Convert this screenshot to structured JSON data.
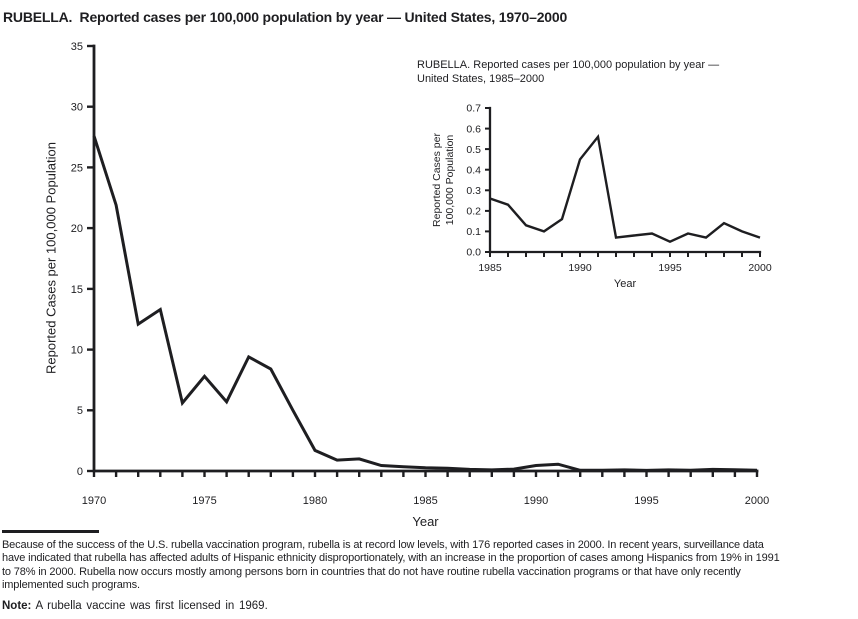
{
  "page_title": "RUBELLA.  Reported cases per 100,000 population by year — United States, 1970–2000",
  "colors": {
    "ink": "#1e1e21",
    "background": "#ffffff"
  },
  "chart_data": [
    {
      "type": "line",
      "title": "RUBELLA.  Reported cases per 100,000 population by year — United States, 1970–2000",
      "xlabel": "Year",
      "ylabel": "Reported Cases per 100,000 Population",
      "ylabel_lines": [
        "Reported Cases per 100,000 Population"
      ],
      "x": [
        1970,
        1971,
        1972,
        1973,
        1974,
        1975,
        1976,
        1977,
        1978,
        1979,
        1980,
        1981,
        1982,
        1983,
        1984,
        1985,
        1986,
        1987,
        1988,
        1989,
        1990,
        1991,
        1992,
        1993,
        1994,
        1995,
        1996,
        1997,
        1998,
        1999,
        2000
      ],
      "values": [
        27.6,
        21.9,
        12.1,
        13.3,
        5.6,
        7.8,
        5.7,
        9.4,
        8.4,
        5.0,
        1.7,
        0.9,
        1.0,
        0.45,
        0.35,
        0.26,
        0.23,
        0.13,
        0.09,
        0.16,
        0.45,
        0.56,
        0.06,
        0.07,
        0.09,
        0.05,
        0.09,
        0.07,
        0.13,
        0.1,
        0.06
      ],
      "xlim": [
        1970,
        2000
      ],
      "ylim": [
        0,
        35
      ],
      "xtick_values": [
        1970,
        1975,
        1980,
        1985,
        1990,
        1995,
        2000
      ],
      "xtick_labels": [
        "1970",
        "1975",
        "1980",
        "1985",
        "1990",
        "1995",
        "2000"
      ],
      "ytick_values": [
        0,
        5,
        10,
        15,
        20,
        25,
        30,
        35
      ],
      "ytick_labels": [
        "0",
        "5",
        "10",
        "15",
        "20",
        "25",
        "30",
        "35"
      ],
      "grid": false,
      "legend": "none",
      "line_color": "#1e1e21"
    },
    {
      "type": "line",
      "title": "RUBELLA. Reported cases per 100,000 population by year — United States, 1985–2000",
      "title_lines": [
        "RUBELLA. Reported cases per 100,000 population by year —",
        "United States, 1985–2000"
      ],
      "xlabel": "Year",
      "ylabel": "Reported Cases per 100,000 Population",
      "ylabel_lines": [
        "Reported Cases per",
        "100,000 Population"
      ],
      "x": [
        1985,
        1986,
        1987,
        1988,
        1989,
        1990,
        1991,
        1992,
        1993,
        1994,
        1995,
        1996,
        1997,
        1998,
        1999,
        2000
      ],
      "values": [
        0.26,
        0.23,
        0.13,
        0.1,
        0.16,
        0.45,
        0.56,
        0.07,
        0.08,
        0.09,
        0.05,
        0.09,
        0.07,
        0.14,
        0.1,
        0.07
      ],
      "xlim": [
        1985,
        2000
      ],
      "ylim": [
        0,
        0.7
      ],
      "xtick_values": [
        1985,
        1990,
        1995,
        2000
      ],
      "xtick_labels": [
        "1985",
        "1990",
        "1995",
        "2000"
      ],
      "ytick_values": [
        0,
        0.1,
        0.2,
        0.3,
        0.4,
        0.5,
        0.6,
        0.7
      ],
      "ytick_labels": [
        "0.0",
        "0.1",
        "0.2",
        "0.3",
        "0.4",
        "0.5",
        "0.6",
        "0.7"
      ],
      "grid": false,
      "legend": "none",
      "line_color": "#1e1e21"
    }
  ],
  "footnote": {
    "lines": [
      "Because of the success of the U.S. rubella vaccination program, rubella is at record low levels, with 176 reported cases in 2000. In recent years, surveillance data",
      "have indicated that rubella has affected adults of Hispanic ethnicity disproportionately, with an increase in the proportion of cases among Hispanics from 19% in 1991",
      "to 78% in 2000. Rubella now occurs mostly among persons born in countries that do not have routine rubella vaccination programs or that have only recently",
      "implemented such programs."
    ]
  },
  "note": {
    "label": "Note:",
    "text": "A rubella vaccine was first licensed in 1969."
  }
}
